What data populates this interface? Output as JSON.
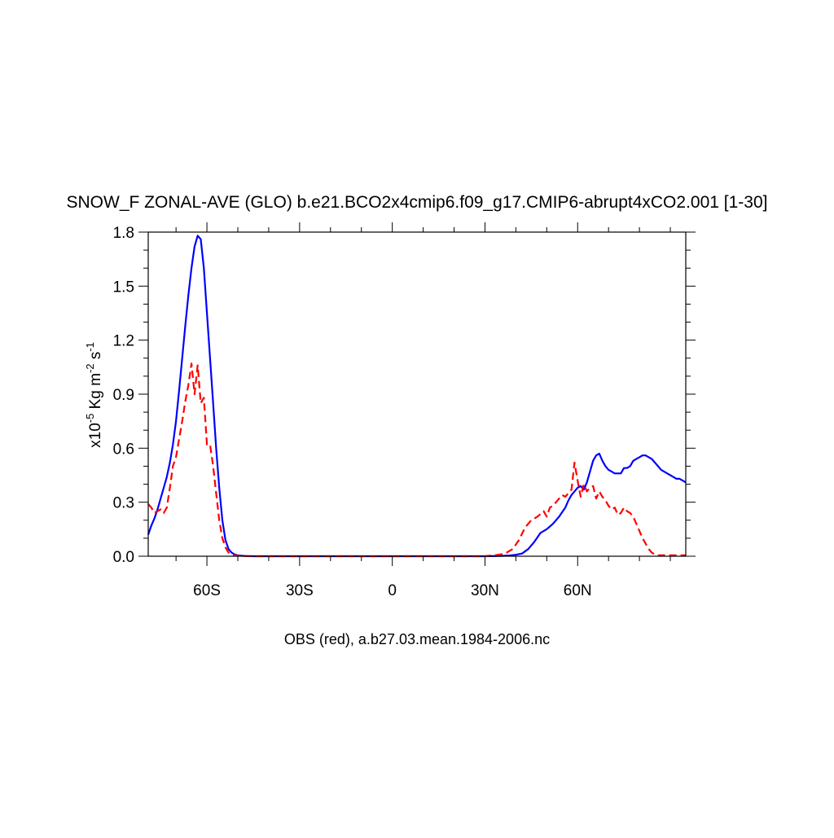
{
  "chart_data": {
    "type": "line",
    "title": "SNOW_F ZONAL-AVE (GLO) b.e21.BCO2x4cmip6.f09_g17.CMIP6-abrupt4xCO2.001 [1-30]",
    "xlabel": "OBS (red), a.b27.03.mean.1984-2006.nc",
    "ylabel": {
      "prefix": "x10",
      "exp1": "-5",
      "mid": " Kg m",
      "exp2": "-2",
      "mid2": " s",
      "exp3": "-1"
    },
    "xlim": [
      -79,
      95
    ],
    "ylim": [
      0.0,
      1.8
    ],
    "x_ticks": [
      {
        "value": -60,
        "label": "60S"
      },
      {
        "value": -30,
        "label": "30S"
      },
      {
        "value": 0,
        "label": "0"
      },
      {
        "value": 30,
        "label": "30N"
      },
      {
        "value": 60,
        "label": "60N"
      }
    ],
    "y_ticks": [
      {
        "value": 0.0,
        "label": "0.0"
      },
      {
        "value": 0.3,
        "label": "0.3"
      },
      {
        "value": 0.6,
        "label": "0.6"
      },
      {
        "value": 0.9,
        "label": "0.9"
      },
      {
        "value": 1.2,
        "label": "1.2"
      },
      {
        "value": 1.5,
        "label": "1.5"
      },
      {
        "value": 1.8,
        "label": "1.8"
      }
    ],
    "grid": false,
    "series": [
      {
        "color": "#0000ff",
        "dash": "solid",
        "x": [
          -79,
          -78,
          -77,
          -76,
          -75,
          -74,
          -73,
          -72,
          -71,
          -70,
          -69,
          -68,
          -67,
          -66,
          -65,
          -64,
          -63,
          -62,
          -61,
          -60,
          -59,
          -58,
          -57,
          -56,
          -55,
          -54,
          -53,
          -52,
          -51,
          -50,
          -49,
          -48,
          -47,
          -46,
          -45,
          -40,
          -30,
          -20,
          -10,
          0,
          10,
          20,
          30,
          35,
          38,
          40,
          42,
          44,
          46,
          48,
          50,
          52,
          54,
          56,
          57,
          58,
          59,
          60,
          61,
          62,
          63,
          64,
          65,
          66,
          67,
          68,
          69,
          70,
          71,
          72,
          73,
          74,
          75,
          76,
          77,
          78,
          79,
          80,
          81,
          82,
          83,
          84,
          85,
          86,
          87,
          88,
          89,
          90,
          91,
          92,
          93,
          94,
          95
        ],
        "y": [
          0.12,
          0.17,
          0.21,
          0.26,
          0.32,
          0.38,
          0.44,
          0.52,
          0.62,
          0.75,
          0.92,
          1.1,
          1.28,
          1.45,
          1.6,
          1.72,
          1.78,
          1.76,
          1.6,
          1.35,
          1.1,
          0.85,
          0.6,
          0.38,
          0.2,
          0.09,
          0.04,
          0.02,
          0.01,
          0.005,
          0.003,
          0.002,
          0.001,
          0.001,
          0.0,
          0.0,
          0.0,
          0.0,
          0.0,
          0.0,
          0.0,
          0.0,
          0.0,
          0.002,
          0.004,
          0.008,
          0.015,
          0.04,
          0.08,
          0.13,
          0.15,
          0.18,
          0.22,
          0.27,
          0.31,
          0.34,
          0.36,
          0.38,
          0.39,
          0.37,
          0.41,
          0.47,
          0.53,
          0.56,
          0.57,
          0.53,
          0.5,
          0.48,
          0.47,
          0.46,
          0.46,
          0.46,
          0.49,
          0.49,
          0.5,
          0.53,
          0.54,
          0.55,
          0.56,
          0.56,
          0.55,
          0.54,
          0.52,
          0.5,
          0.48,
          0.47,
          0.46,
          0.45,
          0.44,
          0.43,
          0.43,
          0.42,
          0.41
        ]
      },
      {
        "color": "#ff0000",
        "dash": "dashed",
        "x": [
          -79,
          -78,
          -77,
          -76,
          -75,
          -74,
          -73,
          -72,
          -71,
          -70,
          -69,
          -68,
          -67,
          -66,
          -65,
          -64,
          -63,
          -62,
          -61,
          -60,
          -59,
          -58,
          -57,
          -56,
          -55,
          -54,
          -53,
          -52,
          -51,
          -50,
          -49,
          -48,
          -47,
          -46,
          -45,
          -40,
          -30,
          -20,
          -10,
          0,
          10,
          20,
          30,
          33,
          35,
          37,
          39,
          41,
          43,
          45,
          47,
          49,
          50,
          51,
          52,
          53,
          54,
          55,
          56,
          57,
          58,
          59,
          60,
          61,
          62,
          63,
          64,
          65,
          66,
          67,
          68,
          69,
          70,
          71,
          72,
          73,
          74,
          75,
          76,
          77,
          78,
          79,
          80,
          81,
          82,
          83,
          84,
          85,
          86,
          87,
          88,
          89,
          90,
          91,
          92,
          93,
          94,
          95
        ],
        "y": [
          0.29,
          0.27,
          0.24,
          0.25,
          0.26,
          0.24,
          0.27,
          0.38,
          0.5,
          0.55,
          0.65,
          0.75,
          0.86,
          0.95,
          1.07,
          0.9,
          1.06,
          0.85,
          0.88,
          0.62,
          0.62,
          0.5,
          0.35,
          0.2,
          0.1,
          0.05,
          0.02,
          0.01,
          0.005,
          0.003,
          0.002,
          0.001,
          0.001,
          0.0,
          0.0,
          0.0,
          0.0,
          0.0,
          0.0,
          0.0,
          0.0,
          0.0,
          0.0,
          0.005,
          0.01,
          0.02,
          0.04,
          0.09,
          0.16,
          0.2,
          0.22,
          0.25,
          0.22,
          0.27,
          0.28,
          0.3,
          0.32,
          0.34,
          0.33,
          0.35,
          0.37,
          0.52,
          0.42,
          0.33,
          0.4,
          0.36,
          0.38,
          0.39,
          0.32,
          0.36,
          0.33,
          0.31,
          0.28,
          0.26,
          0.27,
          0.23,
          0.24,
          0.27,
          0.25,
          0.24,
          0.22,
          0.18,
          0.14,
          0.1,
          0.07,
          0.04,
          0.02,
          0.01,
          0.005,
          0.005,
          0.005,
          0.005,
          0.005,
          0.005,
          0.005,
          0.005,
          0.005,
          0.005
        ]
      }
    ]
  }
}
